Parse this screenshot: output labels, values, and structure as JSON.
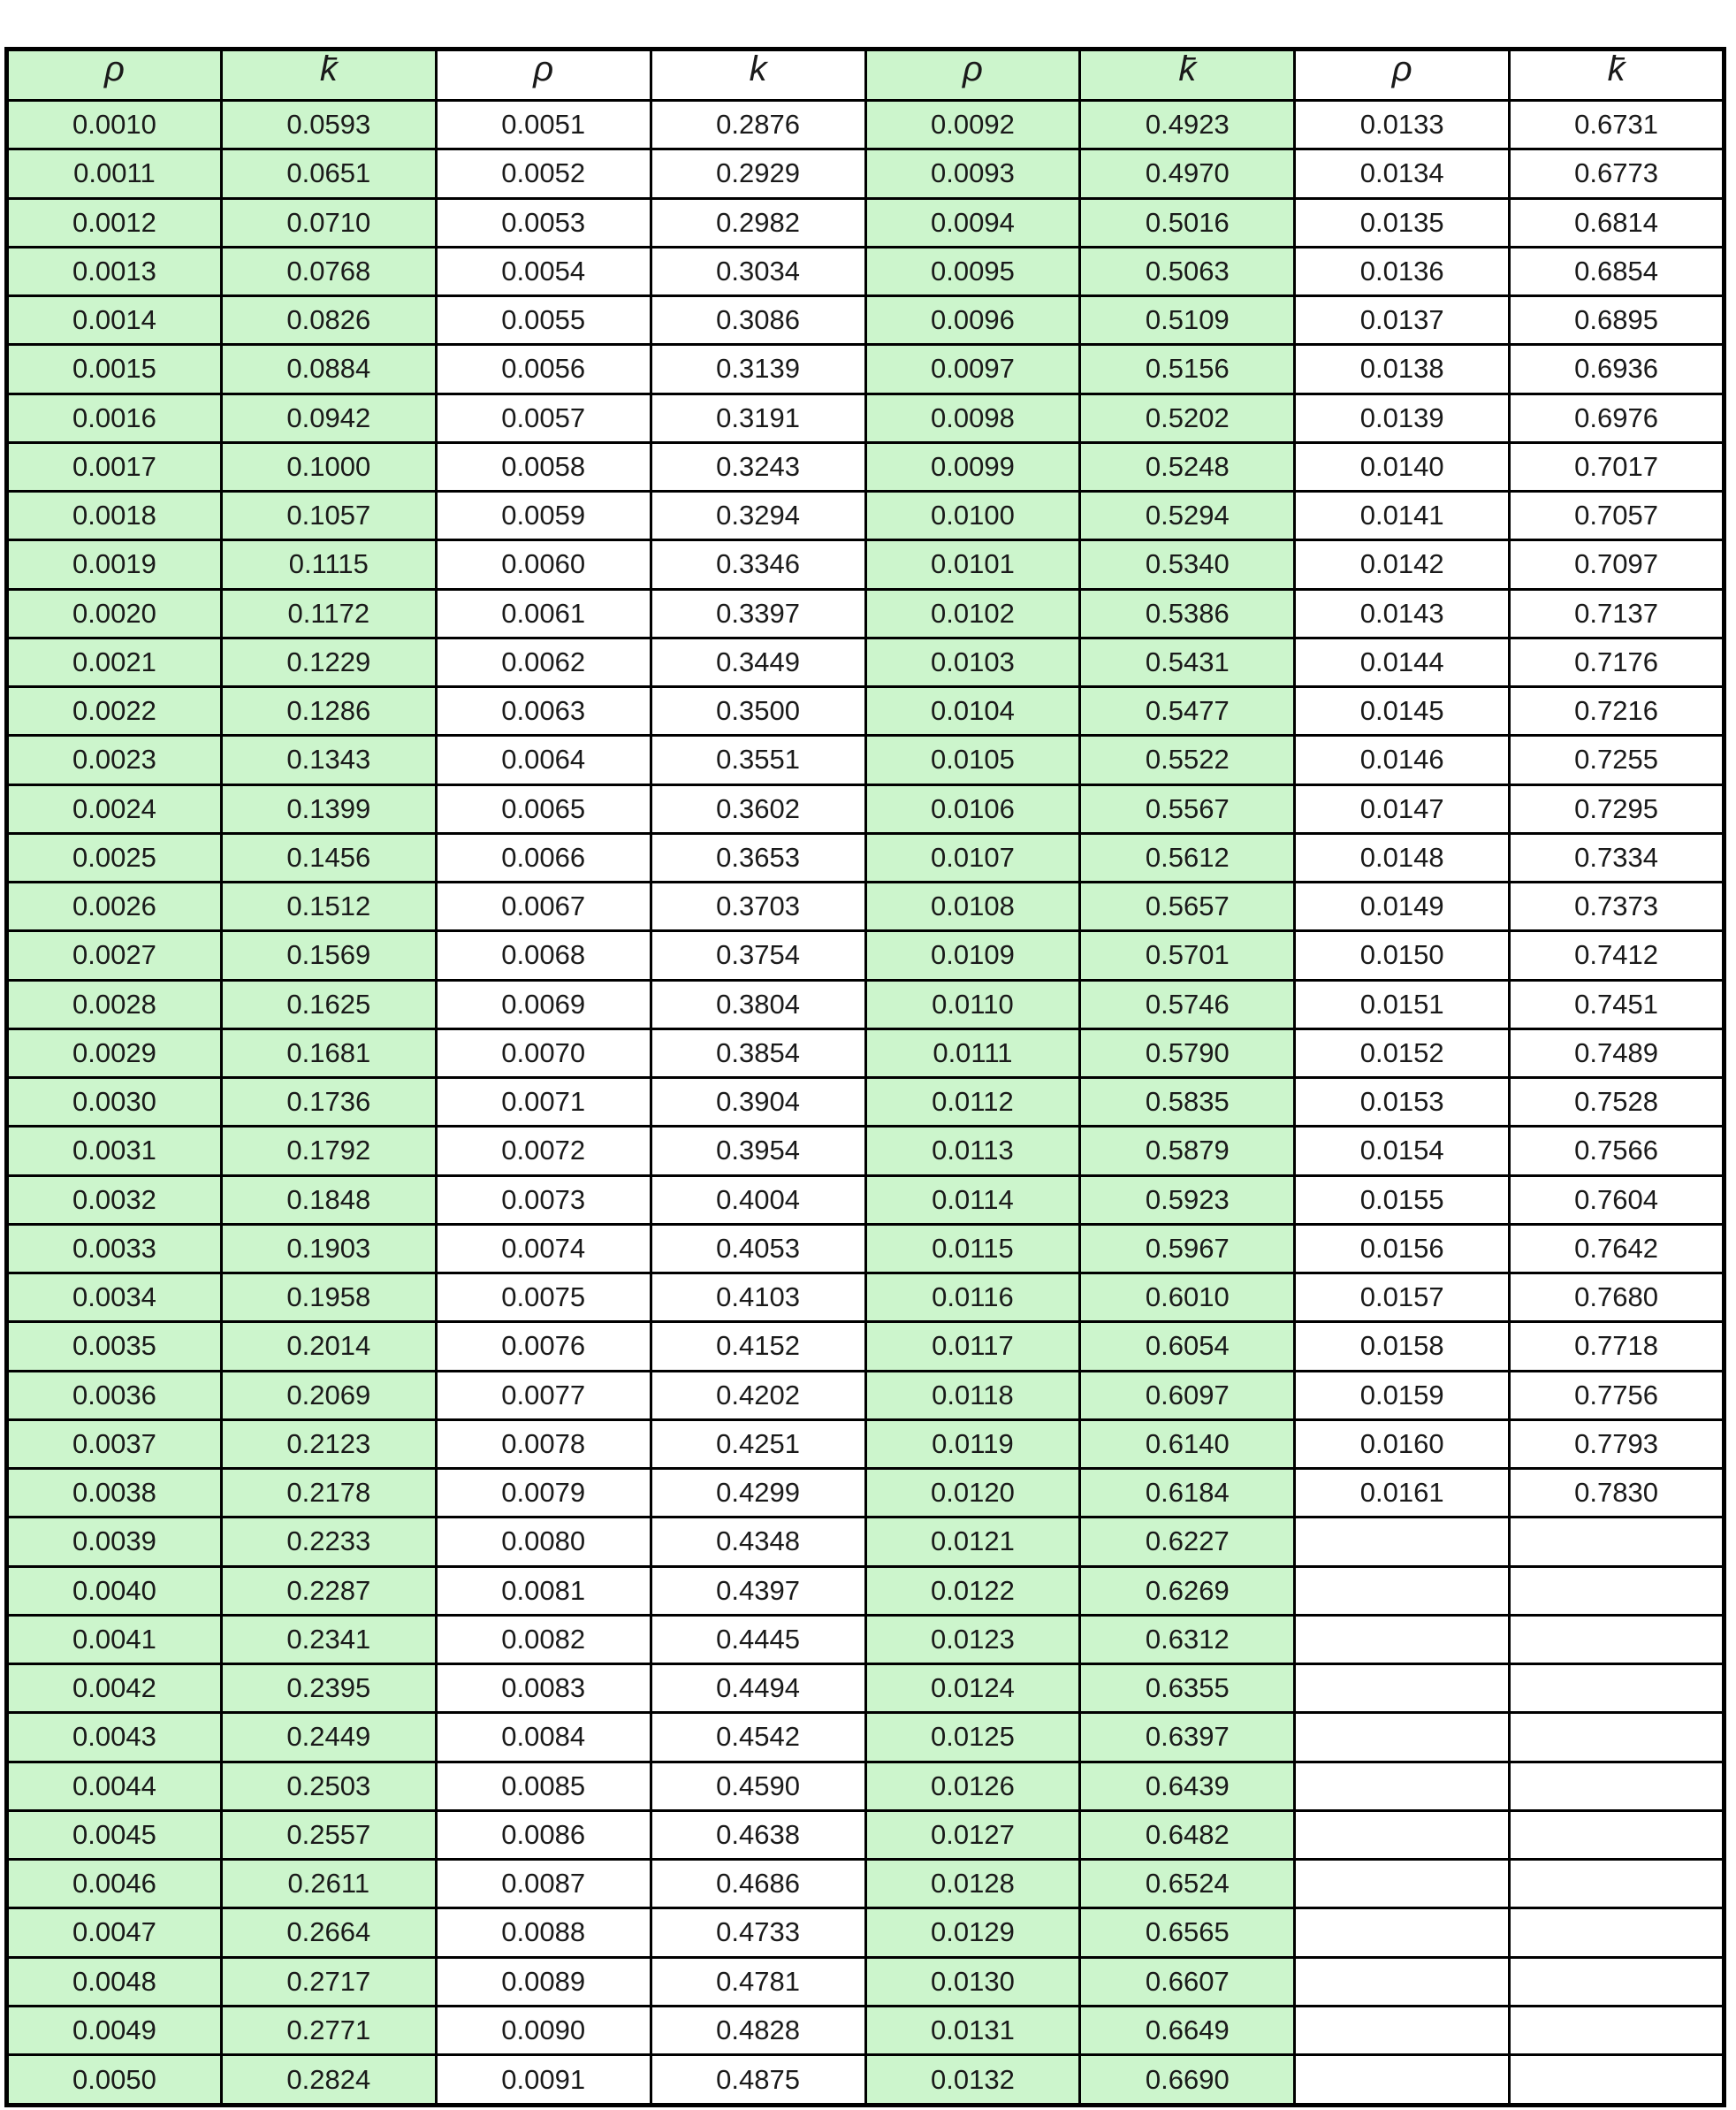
{
  "colors": {
    "green_fill": "#ccf5cc",
    "grid_border": "#000000",
    "text": "#1a1a1a"
  },
  "table": {
    "headers": [
      "ρ",
      "k̄",
      "ρ",
      "k",
      "ρ",
      "k̄",
      "ρ",
      "k̄"
    ],
    "green_columns": [
      0,
      1,
      4,
      5
    ],
    "rows": [
      [
        "0.0010",
        "0.0593",
        "0.0051",
        "0.2876",
        "0.0092",
        "0.4923",
        "0.0133",
        "0.6731"
      ],
      [
        "0.0011",
        "0.0651",
        "0.0052",
        "0.2929",
        "0.0093",
        "0.4970",
        "0.0134",
        "0.6773"
      ],
      [
        "0.0012",
        "0.0710",
        "0.0053",
        "0.2982",
        "0.0094",
        "0.5016",
        "0.0135",
        "0.6814"
      ],
      [
        "0.0013",
        "0.0768",
        "0.0054",
        "0.3034",
        "0.0095",
        "0.5063",
        "0.0136",
        "0.6854"
      ],
      [
        "0.0014",
        "0.0826",
        "0.0055",
        "0.3086",
        "0.0096",
        "0.5109",
        "0.0137",
        "0.6895"
      ],
      [
        "0.0015",
        "0.0884",
        "0.0056",
        "0.3139",
        "0.0097",
        "0.5156",
        "0.0138",
        "0.6936"
      ],
      [
        "0.0016",
        "0.0942",
        "0.0057",
        "0.3191",
        "0.0098",
        "0.5202",
        "0.0139",
        "0.6976"
      ],
      [
        "0.0017",
        "0.1000",
        "0.0058",
        "0.3243",
        "0.0099",
        "0.5248",
        "0.0140",
        "0.7017"
      ],
      [
        "0.0018",
        "0.1057",
        "0.0059",
        "0.3294",
        "0.0100",
        "0.5294",
        "0.0141",
        "0.7057"
      ],
      [
        "0.0019",
        "0.1115",
        "0.0060",
        "0.3346",
        "0.0101",
        "0.5340",
        "0.0142",
        "0.7097"
      ],
      [
        "0.0020",
        "0.1172",
        "0.0061",
        "0.3397",
        "0.0102",
        "0.5386",
        "0.0143",
        "0.7137"
      ],
      [
        "0.0021",
        "0.1229",
        "0.0062",
        "0.3449",
        "0.0103",
        "0.5431",
        "0.0144",
        "0.7176"
      ],
      [
        "0.0022",
        "0.1286",
        "0.0063",
        "0.3500",
        "0.0104",
        "0.5477",
        "0.0145",
        "0.7216"
      ],
      [
        "0.0023",
        "0.1343",
        "0.0064",
        "0.3551",
        "0.0105",
        "0.5522",
        "0.0146",
        "0.7255"
      ],
      [
        "0.0024",
        "0.1399",
        "0.0065",
        "0.3602",
        "0.0106",
        "0.5567",
        "0.0147",
        "0.7295"
      ],
      [
        "0.0025",
        "0.1456",
        "0.0066",
        "0.3653",
        "0.0107",
        "0.5612",
        "0.0148",
        "0.7334"
      ],
      [
        "0.0026",
        "0.1512",
        "0.0067",
        "0.3703",
        "0.0108",
        "0.5657",
        "0.0149",
        "0.7373"
      ],
      [
        "0.0027",
        "0.1569",
        "0.0068",
        "0.3754",
        "0.0109",
        "0.5701",
        "0.0150",
        "0.7412"
      ],
      [
        "0.0028",
        "0.1625",
        "0.0069",
        "0.3804",
        "0.0110",
        "0.5746",
        "0.0151",
        "0.7451"
      ],
      [
        "0.0029",
        "0.1681",
        "0.0070",
        "0.3854",
        "0.0111",
        "0.5790",
        "0.0152",
        "0.7489"
      ],
      [
        "0.0030",
        "0.1736",
        "0.0071",
        "0.3904",
        "0.0112",
        "0.5835",
        "0.0153",
        "0.7528"
      ],
      [
        "0.0031",
        "0.1792",
        "0.0072",
        "0.3954",
        "0.0113",
        "0.5879",
        "0.0154",
        "0.7566"
      ],
      [
        "0.0032",
        "0.1848",
        "0.0073",
        "0.4004",
        "0.0114",
        "0.5923",
        "0.0155",
        "0.7604"
      ],
      [
        "0.0033",
        "0.1903",
        "0.0074",
        "0.4053",
        "0.0115",
        "0.5967",
        "0.0156",
        "0.7642"
      ],
      [
        "0.0034",
        "0.1958",
        "0.0075",
        "0.4103",
        "0.0116",
        "0.6010",
        "0.0157",
        "0.7680"
      ],
      [
        "0.0035",
        "0.2014",
        "0.0076",
        "0.4152",
        "0.0117",
        "0.6054",
        "0.0158",
        "0.7718"
      ],
      [
        "0.0036",
        "0.2069",
        "0.0077",
        "0.4202",
        "0.0118",
        "0.6097",
        "0.0159",
        "0.7756"
      ],
      [
        "0.0037",
        "0.2123",
        "0.0078",
        "0.4251",
        "0.0119",
        "0.6140",
        "0.0160",
        "0.7793"
      ],
      [
        "0.0038",
        "0.2178",
        "0.0079",
        "0.4299",
        "0.0120",
        "0.6184",
        "0.0161",
        "0.7830"
      ],
      [
        "0.0039",
        "0.2233",
        "0.0080",
        "0.4348",
        "0.0121",
        "0.6227",
        "",
        ""
      ],
      [
        "0.0040",
        "0.2287",
        "0.0081",
        "0.4397",
        "0.0122",
        "0.6269",
        "",
        ""
      ],
      [
        "0.0041",
        "0.2341",
        "0.0082",
        "0.4445",
        "0.0123",
        "0.6312",
        "",
        ""
      ],
      [
        "0.0042",
        "0.2395",
        "0.0083",
        "0.4494",
        "0.0124",
        "0.6355",
        "",
        ""
      ],
      [
        "0.0043",
        "0.2449",
        "0.0084",
        "0.4542",
        "0.0125",
        "0.6397",
        "",
        ""
      ],
      [
        "0.0044",
        "0.2503",
        "0.0085",
        "0.4590",
        "0.0126",
        "0.6439",
        "",
        ""
      ],
      [
        "0.0045",
        "0.2557",
        "0.0086",
        "0.4638",
        "0.0127",
        "0.6482",
        "",
        ""
      ],
      [
        "0.0046",
        "0.2611",
        "0.0087",
        "0.4686",
        "0.0128",
        "0.6524",
        "",
        ""
      ],
      [
        "0.0047",
        "0.2664",
        "0.0088",
        "0.4733",
        "0.0129",
        "0.6565",
        "",
        ""
      ],
      [
        "0.0048",
        "0.2717",
        "0.0089",
        "0.4781",
        "0.0130",
        "0.6607",
        "",
        ""
      ],
      [
        "0.0049",
        "0.2771",
        "0.0090",
        "0.4828",
        "0.0131",
        "0.6649",
        "",
        ""
      ],
      [
        "0.0050",
        "0.2824",
        "0.0091",
        "0.4875",
        "0.0132",
        "0.6690",
        "",
        ""
      ]
    ]
  }
}
